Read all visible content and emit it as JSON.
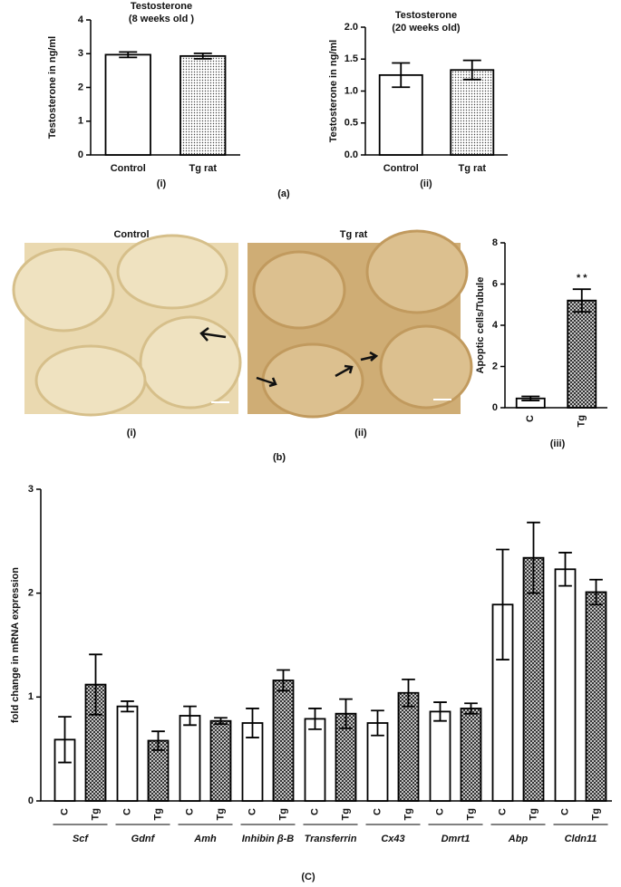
{
  "panel_labels": [
    "(a)",
    "(b)",
    "(C)"
  ],
  "images": [
    {
      "title": "Control",
      "label": "(i)"
    },
    {
      "title": "Tg rat",
      "label": "(ii)"
    }
  ],
  "chart_data": [
    {
      "type": "bar",
      "title": "Testosterone",
      "subtitle": "(8 weeks old )",
      "y_label": "Testosterone in ng/ml",
      "panel": "(i)",
      "categories": [
        "Control",
        "Tg rat"
      ],
      "values": [
        2.97,
        2.93
      ],
      "errors": [
        0.08,
        0.08
      ],
      "fills": [
        "white",
        "dots"
      ],
      "ylim": [
        0,
        4
      ],
      "yticks": [
        0,
        1,
        2,
        3,
        4
      ]
    },
    {
      "type": "bar",
      "title": "Testosterone",
      "subtitle": " (20 weeks old)",
      "y_label": "Testosterone in ng/ml",
      "panel": "(ii)",
      "categories": [
        "Control",
        "Tg rat"
      ],
      "values": [
        1.25,
        1.33
      ],
      "errors": [
        0.19,
        0.15
      ],
      "fills": [
        "white",
        "dots"
      ],
      "ylim": [
        0,
        2
      ],
      "yticks": [
        {
          "value": 0,
          "label": "0.0"
        },
        0.5,
        {
          "value": 1,
          "label": "1.0"
        },
        1.5,
        {
          "value": 2,
          "label": "2.0"
        }
      ]
    },
    {
      "type": "bar",
      "y_label": "Apoptic cells/Tubule",
      "panel": "(iii)",
      "annotation": "* *",
      "categories": [
        "C",
        "Tg"
      ],
      "values": [
        0.45,
        5.2
      ],
      "errors": [
        0.1,
        0.55
      ],
      "fills": [
        "white",
        "crosshatch"
      ],
      "ylim": [
        0,
        8
      ],
      "yticks": [
        0,
        2,
        4,
        6,
        8
      ]
    },
    {
      "type": "grouped_bar",
      "y_label": "fold change in mRNA expression",
      "categories": [
        "Scf",
        "Gdnf",
        "Amh",
        "Inhibin β-B",
        "Transferrin",
        "Cx43",
        "Dmrt1",
        "Abp",
        "Cldn11"
      ],
      "series": [
        {
          "name": "C",
          "fill": "white",
          "values": [
            0.59,
            0.91,
            0.82,
            0.75,
            0.79,
            0.75,
            0.86,
            1.89,
            2.23
          ],
          "errors": [
            0.22,
            0.05,
            0.09,
            0.14,
            0.1,
            0.12,
            0.09,
            0.53,
            0.16
          ]
        },
        {
          "name": "Tg",
          "fill": "crosshatch",
          "values": [
            1.12,
            0.58,
            0.77,
            1.16,
            0.84,
            1.04,
            0.89,
            2.34,
            2.01
          ],
          "errors": [
            0.29,
            0.09,
            0.03,
            0.1,
            0.14,
            0.13,
            0.05,
            0.34,
            0.12
          ]
        }
      ],
      "ylim": [
        0,
        3
      ],
      "yticks": [
        0,
        1,
        2,
        3
      ]
    }
  ]
}
